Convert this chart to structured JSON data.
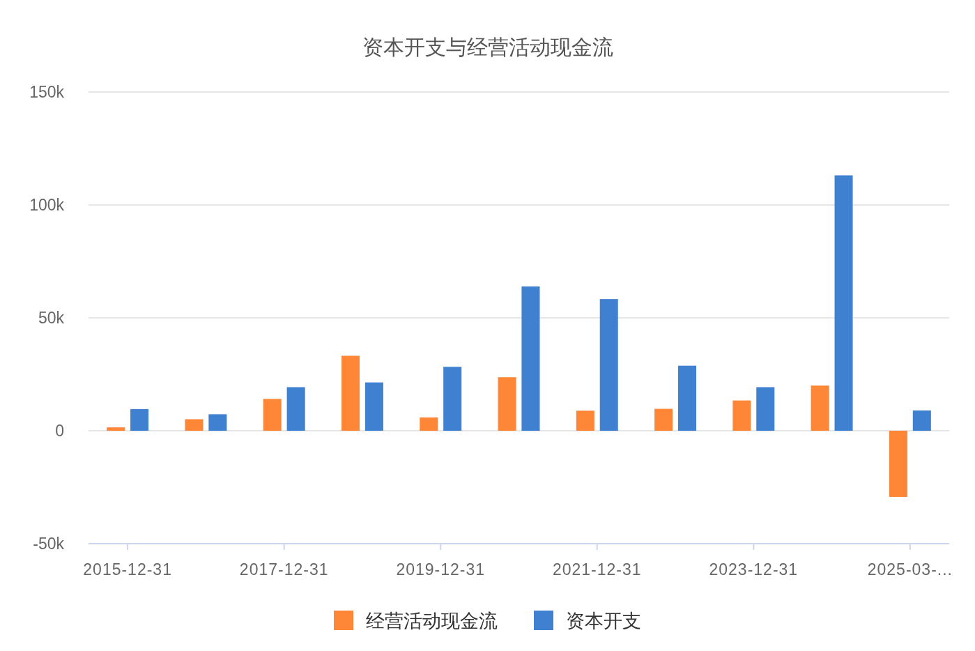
{
  "chart_data": {
    "type": "bar",
    "title": "资本开支与经营活动现金流",
    "categories": [
      "2015-12-31",
      null,
      "2017-12-31",
      null,
      "2019-12-31",
      null,
      "2021-12-31",
      null,
      "2023-12-31",
      null,
      "2025-03-..."
    ],
    "series": [
      {
        "name": "经营活动现金流",
        "color": "#fd8637",
        "values": [
          1500,
          5100,
          14100,
          33200,
          5900,
          23700,
          8900,
          9700,
          13400,
          20000,
          -29300
        ]
      },
      {
        "name": "资本开支",
        "color": "#4080d0",
        "values": [
          9600,
          7300,
          19300,
          21400,
          28300,
          63900,
          58300,
          28800,
          19300,
          113100,
          9000
        ]
      }
    ],
    "ylim": [
      -50000,
      150000
    ],
    "yticks": [
      {
        "value": -50000,
        "label": "-50k"
      },
      0,
      {
        "value": 50000,
        "label": "50k"
      },
      {
        "value": 100000,
        "label": "100k"
      },
      {
        "value": 150000,
        "label": "150k"
      }
    ],
    "grid": "y",
    "legend": "bottom"
  }
}
